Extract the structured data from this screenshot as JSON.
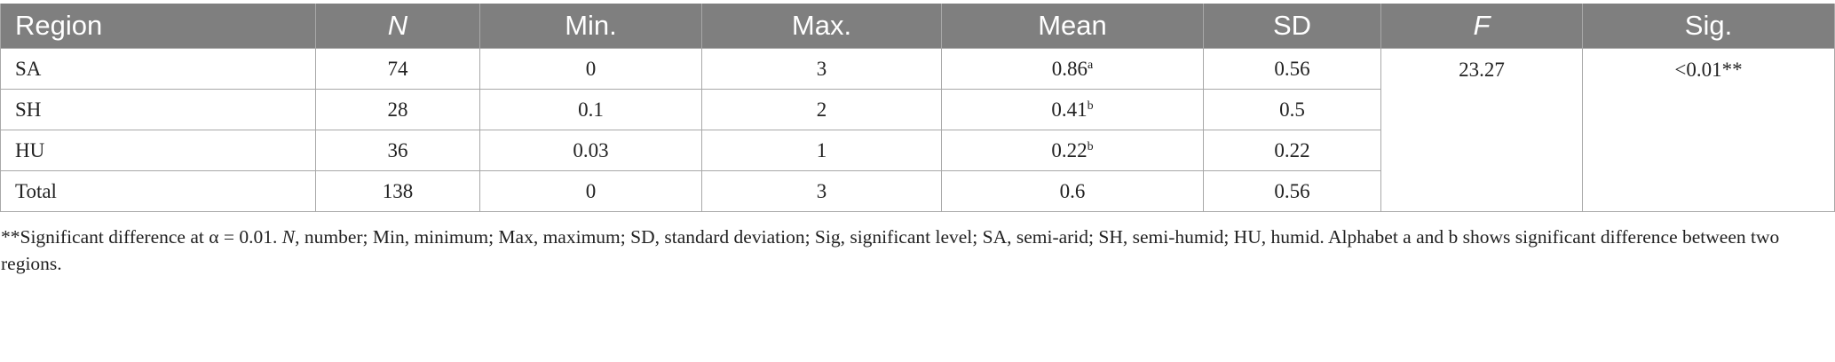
{
  "table": {
    "header": [
      "Region",
      "N",
      "Min.",
      "Max.",
      "Mean",
      "SD",
      "F",
      "Sig."
    ],
    "rows": [
      {
        "region": "SA",
        "n": "74",
        "min": "0",
        "max": "3",
        "mean": "0.86",
        "mean_sup": "a",
        "sd": "0.56"
      },
      {
        "region": "SH",
        "n": "28",
        "min": "0.1",
        "max": "2",
        "mean": "0.41",
        "mean_sup": "b",
        "sd": "0.5"
      },
      {
        "region": "HU",
        "n": "36",
        "min": "0.03",
        "max": "1",
        "mean": "0.22",
        "mean_sup": "b",
        "sd": "0.22"
      },
      {
        "region": "Total",
        "n": "138",
        "min": "0",
        "max": "3",
        "mean": "0.6",
        "mean_sup": null,
        "sd": "0.56"
      }
    ],
    "f_value": "23.27",
    "sig_value": "<0.01**"
  },
  "footnote": {
    "prefix": "**Significant difference at α = 0.01. ",
    "italic": "N",
    "rest": ", number; Min, minimum; Max, maximum; SD, standard deviation; Sig, significant level; SA, semi-arid; SH, semi-humid; HU, humid. Alphabet a and b shows significant difference between two regions."
  }
}
